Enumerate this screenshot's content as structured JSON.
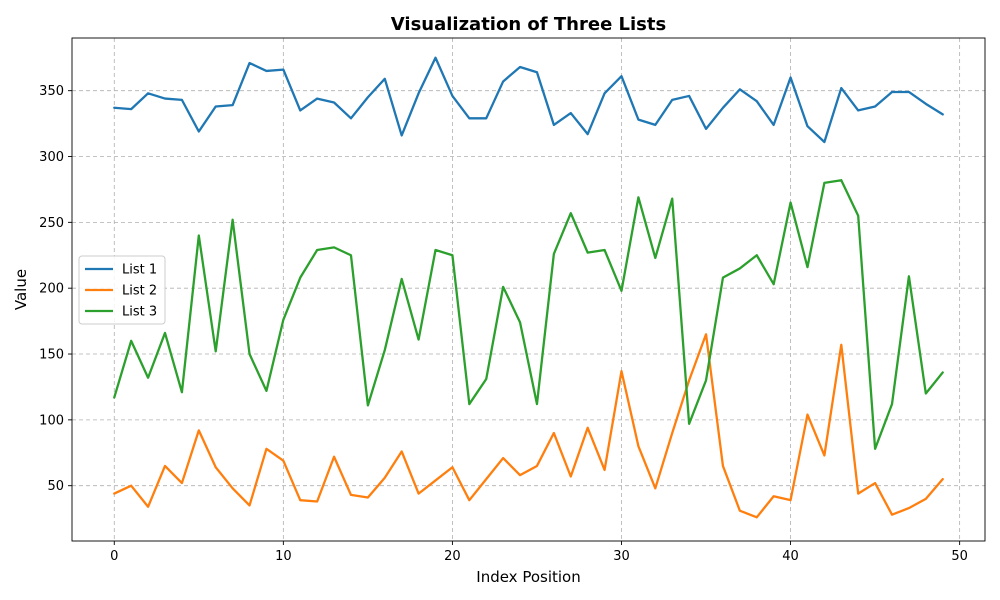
{
  "chart_data": {
    "type": "line",
    "title": "Visualization of Three Lists",
    "xlabel": "Index Position",
    "ylabel": "Value",
    "xlim": [
      -2.5,
      51.5
    ],
    "ylim": [
      8,
      390
    ],
    "xticks": [
      0,
      10,
      20,
      30,
      40,
      50
    ],
    "yticks": [
      50,
      100,
      150,
      200,
      250,
      300,
      350
    ],
    "grid": true,
    "legend_position": "center-left",
    "x": [
      0,
      1,
      2,
      3,
      4,
      5,
      6,
      7,
      8,
      9,
      10,
      11,
      12,
      13,
      14,
      15,
      16,
      17,
      18,
      19,
      20,
      21,
      22,
      23,
      24,
      25,
      26,
      27,
      28,
      29,
      30,
      31,
      32,
      33,
      34,
      35,
      36,
      37,
      38,
      39,
      40,
      41,
      42,
      43,
      44,
      45,
      46,
      47,
      48,
      49
    ],
    "series": [
      {
        "name": "List 1",
        "color": "#1f77b4",
        "values": [
          337,
          336,
          348,
          344,
          343,
          319,
          338,
          339,
          371,
          365,
          366,
          335,
          344,
          341,
          329,
          345,
          359,
          316,
          348,
          375,
          346,
          329,
          329,
          357,
          368,
          364,
          324,
          333,
          317,
          348,
          361,
          328,
          324,
          343,
          346,
          321,
          337,
          351,
          342,
          324,
          360,
          323,
          311,
          352,
          335,
          338,
          349,
          349,
          340,
          332
        ]
      },
      {
        "name": "List 2",
        "color": "#ff7f0e",
        "values": [
          44,
          50,
          34,
          65,
          52,
          92,
          64,
          48,
          35,
          78,
          69,
          39,
          38,
          72,
          43,
          41,
          56,
          76,
          44,
          54,
          64,
          39,
          55,
          71,
          58,
          65,
          90,
          57,
          94,
          62,
          137,
          80,
          48,
          90,
          130,
          165,
          65,
          31,
          26,
          42,
          39,
          104,
          73,
          157,
          44,
          52,
          28,
          33,
          40,
          55
        ]
      },
      {
        "name": "List 3",
        "color": "#2ca02c",
        "values": [
          117,
          160,
          132,
          166,
          121,
          240,
          152,
          252,
          150,
          122,
          176,
          208,
          229,
          231,
          225,
          111,
          153,
          207,
          161,
          229,
          225,
          112,
          131,
          201,
          174,
          112,
          226,
          257,
          227,
          229,
          198,
          269,
          223,
          268,
          97,
          130,
          208,
          215,
          225,
          203,
          265,
          216,
          280,
          282,
          255,
          78,
          112,
          209,
          120,
          136
        ]
      }
    ]
  }
}
